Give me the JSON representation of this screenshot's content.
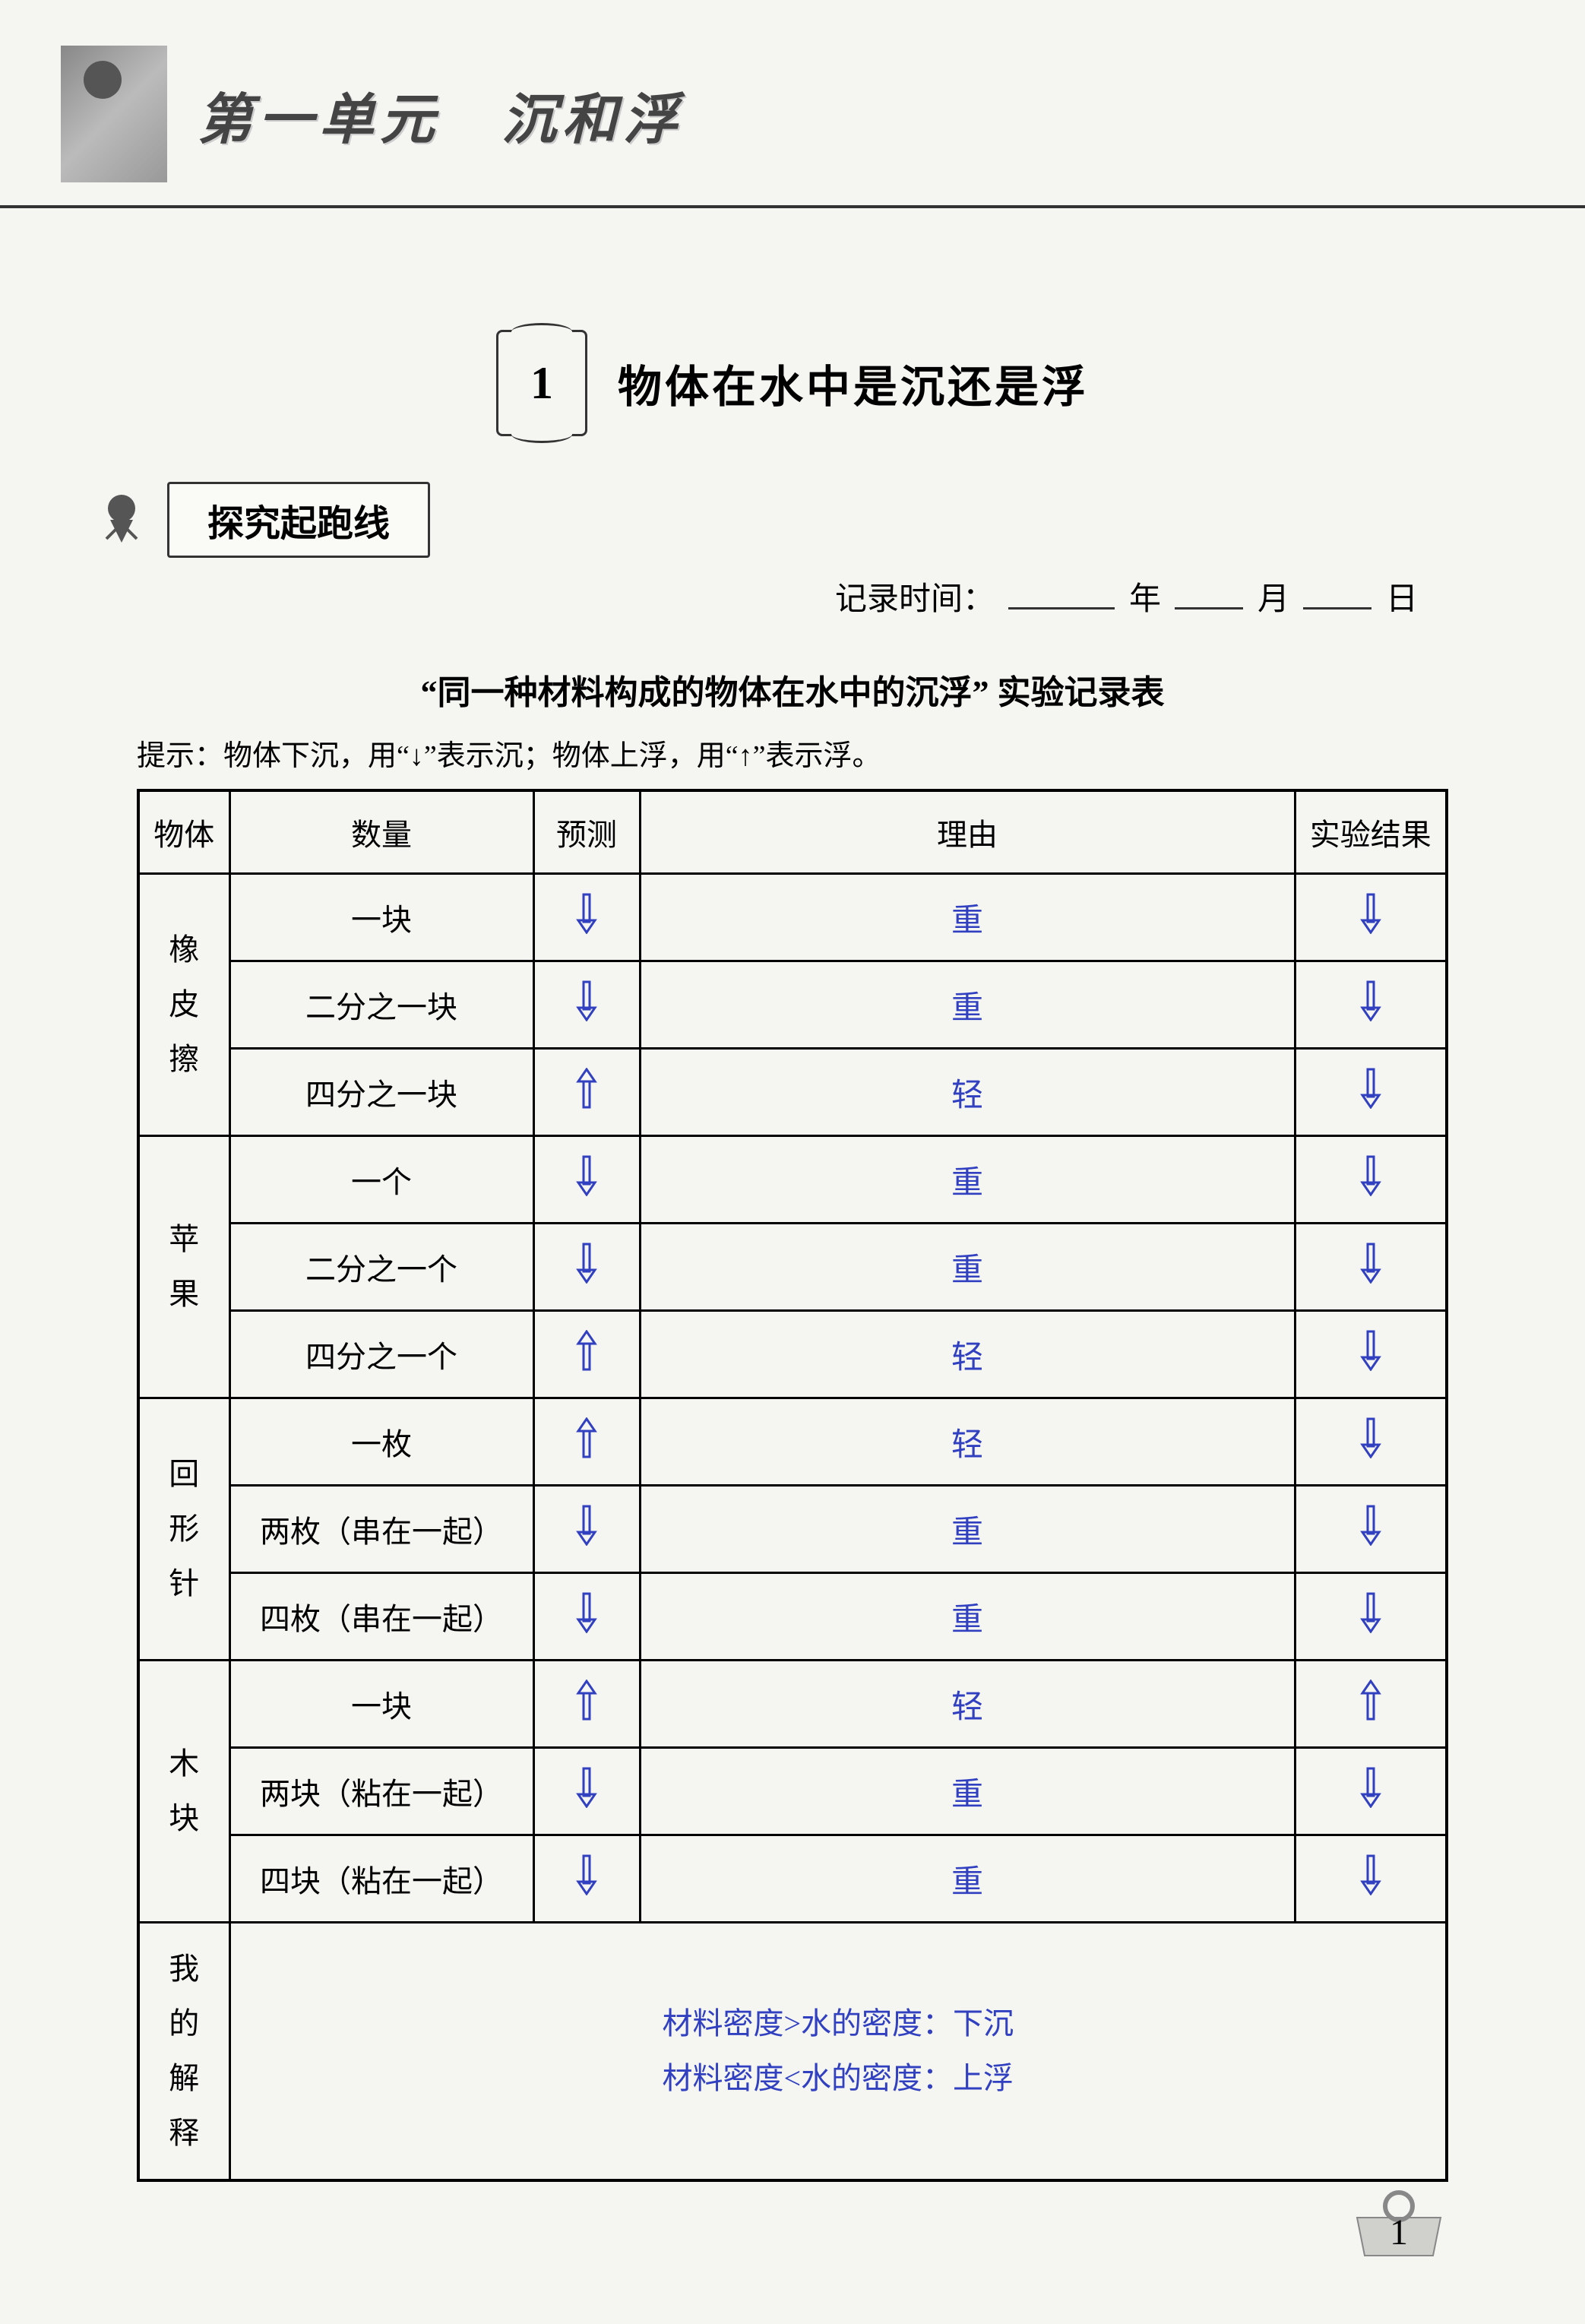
{
  "colors": {
    "ink": "#000000",
    "answer": "#3040c0",
    "bg": "#f5f5f2",
    "header_shadow": "#cccccc"
  },
  "header": {
    "unit_title": "第一单元　沉和浮"
  },
  "section": {
    "number": "1",
    "title": "物体在水中是沉还是浮"
  },
  "subheader": {
    "label": "探究起跑线"
  },
  "date": {
    "prefix": "记录时间：",
    "year_label": "年",
    "month_label": "月",
    "day_label": "日"
  },
  "table": {
    "title": "“同一种材料构成的物体在水中的沉浮” 实验记录表",
    "hint": "提示：物体下沉，用“↓”表示沉；物体上浮，用“↑”表示浮。",
    "columns": {
      "object": "物体",
      "quantity": "数量",
      "prediction": "预测",
      "reason": "理由",
      "result": "实验结果"
    },
    "groups": [
      {
        "label": "橡皮擦",
        "rows": [
          {
            "qty": "一块",
            "pred": "down",
            "reason": "重",
            "result": "down"
          },
          {
            "qty": "二分之一块",
            "pred": "down",
            "reason": "重",
            "result": "down"
          },
          {
            "qty": "四分之一块",
            "pred": "up",
            "reason": "轻",
            "result": "down"
          }
        ]
      },
      {
        "label": "苹果",
        "rows": [
          {
            "qty": "一个",
            "pred": "down",
            "reason": "重",
            "result": "down"
          },
          {
            "qty": "二分之一个",
            "pred": "down",
            "reason": "重",
            "result": "down"
          },
          {
            "qty": "四分之一个",
            "pred": "up",
            "reason": "轻",
            "result": "down"
          }
        ]
      },
      {
        "label": "回形针",
        "rows": [
          {
            "qty": "一枚",
            "pred": "up",
            "reason": "轻",
            "result": "down"
          },
          {
            "qty": "两枚（串在一起）",
            "pred": "down",
            "reason": "重",
            "result": "down"
          },
          {
            "qty": "四枚（串在一起）",
            "pred": "down",
            "reason": "重",
            "result": "down"
          }
        ]
      },
      {
        "label": "木块",
        "rows": [
          {
            "qty": "一块",
            "pred": "up",
            "reason": "轻",
            "result": "up"
          },
          {
            "qty": "两块（粘在一起）",
            "pred": "down",
            "reason": "重",
            "result": "down"
          },
          {
            "qty": "四块（粘在一起）",
            "pred": "down",
            "reason": "重",
            "result": "down"
          }
        ]
      }
    ],
    "explain": {
      "label": "我的解释",
      "lines": [
        "材料密度>水的密度：下沉",
        "材料密度<水的密度：上浮"
      ]
    }
  },
  "page_number": "1"
}
